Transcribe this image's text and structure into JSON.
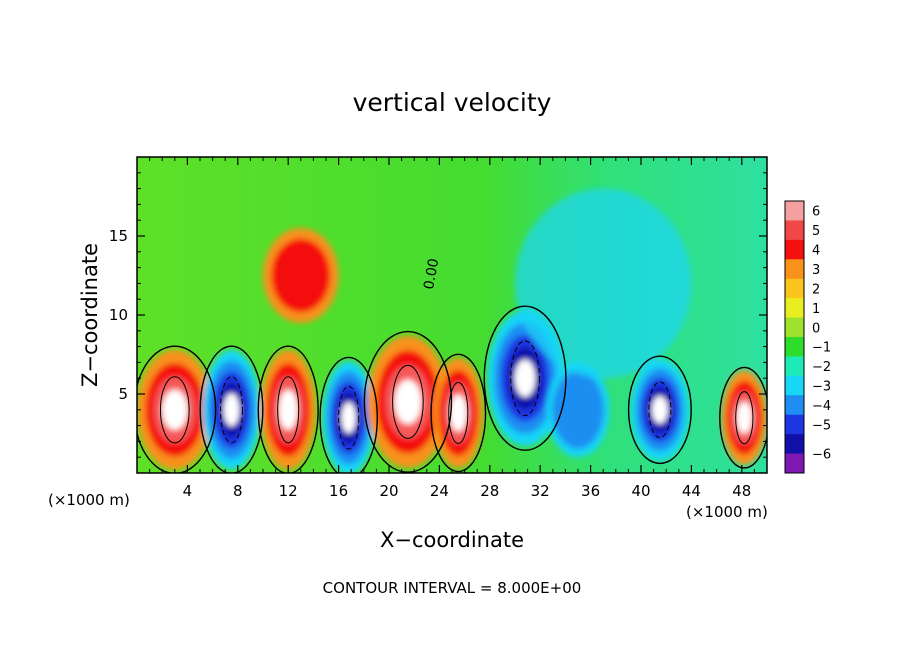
{
  "chart_data": {
    "type": "heatmap",
    "title": "vertical velocity",
    "xlabel": "X−coordinate",
    "ylabel": "Z−coordinate",
    "x_unit_left": "(×1000 m)",
    "x_unit_right": "(×1000 m)",
    "xlim": [
      0,
      50
    ],
    "ylim": [
      0,
      20
    ],
    "x_ticks": [
      4,
      8,
      12,
      16,
      20,
      24,
      28,
      32,
      36,
      40,
      44,
      48
    ],
    "y_ticks": [
      5,
      10,
      15
    ],
    "contour_label": "0.00",
    "footer": "CONTOUR INTERVAL = 8.000E+00",
    "colorbar": {
      "labels": [
        "6",
        "5",
        "4",
        "3",
        "2",
        "1",
        "0",
        "−1",
        "−2",
        "−3",
        "−4",
        "−5",
        "−6"
      ],
      "colors": [
        "#f5a0a0",
        "#f04848",
        "#f41010",
        "#f8921a",
        "#fac41c",
        "#e8ee20",
        "#9ee22e",
        "#2edc2c",
        "#1eeab8",
        "#18d6f6",
        "#1e8ef2",
        "#1c36e2",
        "#1010a8",
        "#7e18b2"
      ]
    },
    "features": [
      {
        "x": 3,
        "z": 4,
        "rx": 3,
        "rz": 3.8,
        "sign": 1
      },
      {
        "x": 7.5,
        "z": 4,
        "rx": 2.3,
        "rz": 3.8,
        "sign": -1
      },
      {
        "x": 12,
        "z": 4,
        "rx": 2.2,
        "rz": 3.8,
        "sign": 1
      },
      {
        "x": 16.8,
        "z": 3.5,
        "rx": 2.1,
        "rz": 3.6,
        "sign": -1
      },
      {
        "x": 21.5,
        "z": 4.5,
        "rx": 3.2,
        "rz": 4.2,
        "sign": 1
      },
      {
        "x": 25.5,
        "z": 3.8,
        "rx": 2,
        "rz": 3.5,
        "sign": 0.8
      },
      {
        "x": 30.8,
        "z": 6,
        "rx": 3,
        "rz": 4.3,
        "sign": -1.1
      },
      {
        "x": 35,
        "z": 4,
        "rx": 2.5,
        "rz": 3,
        "sign": -0.5
      },
      {
        "x": 41.5,
        "z": 4,
        "rx": 2.3,
        "rz": 3.2,
        "sign": -0.9
      },
      {
        "x": 48.2,
        "z": 3.5,
        "rx": 1.8,
        "rz": 3,
        "sign": 1
      },
      {
        "x": 13,
        "z": 12.5,
        "rx": 3,
        "rz": 3,
        "sign": 0.45
      },
      {
        "x": 37,
        "z": 12,
        "rx": 7,
        "rz": 6,
        "sign": -0.3
      }
    ]
  }
}
